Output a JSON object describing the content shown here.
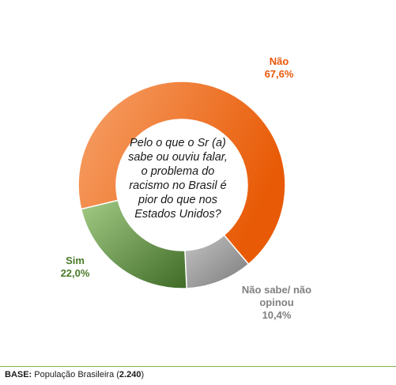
{
  "chart_data": {
    "type": "pie",
    "question": "Pelo o que o Sr (a) sabe ou ouviu falar, o problema do racismo no Brasil é pior do que nos Estados Unidos?",
    "question_lines": [
      "Pelo o que o Sr (a)",
      "sabe ou ouviu falar,",
      "o problema do",
      "racismo no Brasil é",
      "pior do que nos",
      "Estados Unidos?"
    ],
    "slices": [
      {
        "label": "Não",
        "value": 67.6,
        "value_text": "67,6%",
        "color": "#ee6a14",
        "color_light": "#f7a26a"
      },
      {
        "label": "Não sabe/ não opinou",
        "value": 10.4,
        "value_text": "10,4%",
        "color": "#8a8a8a",
        "color_light": "#bdbdbd"
      },
      {
        "label": "Sim",
        "value": 22.0,
        "value_text": "22,0%",
        "color": "#4f7d33",
        "color_light": "#9bc47c"
      }
    ],
    "labels": {
      "nao": {
        "line1": "Não",
        "line2": "67,6%"
      },
      "ns": {
        "line1": "Não sabe/ não",
        "line2": "opinou",
        "line3": "10,4%"
      },
      "sim": {
        "line1": "Sim",
        "line2": "22,0%"
      }
    }
  },
  "footer": {
    "base_label": "BASE:",
    "base_text": " População Brasileira (",
    "base_n": "2.240",
    "base_close": ")"
  }
}
